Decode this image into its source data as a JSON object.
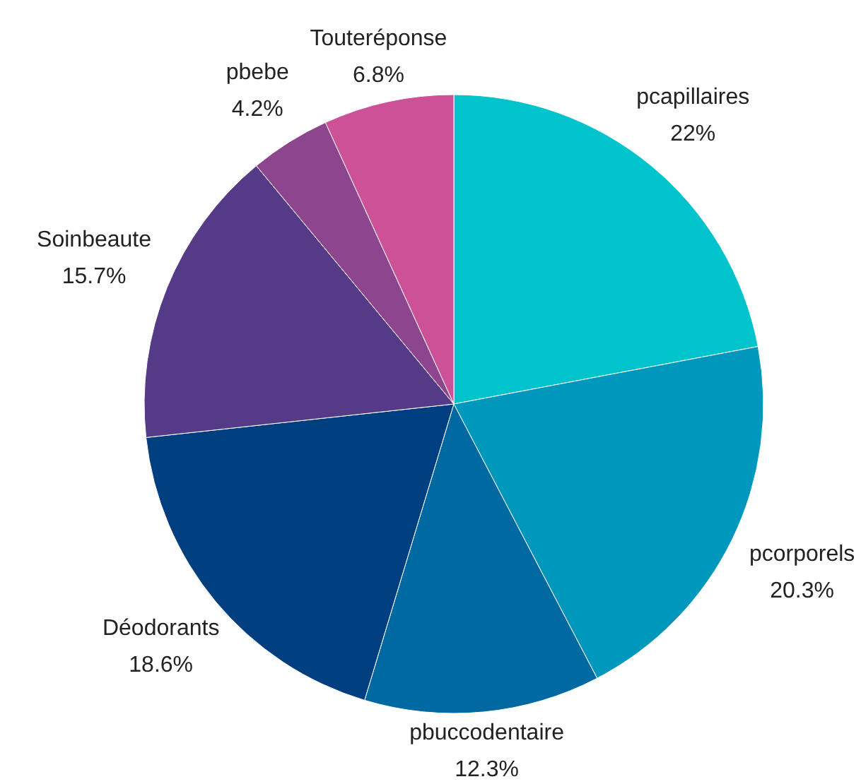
{
  "chart_data": {
    "type": "pie",
    "categories": [
      "pcapillaires",
      "pcorporels",
      "pbuccodentaire",
      "Déodorants",
      "Soinbeaute",
      "pbebe",
      "Touteréponse"
    ],
    "values": [
      22,
      20.3,
      12.3,
      18.6,
      15.7,
      4.2,
      6.8
    ],
    "value_labels": [
      "22%",
      "20.3%",
      "12.3%",
      "18.6%",
      "15.7%",
      "4.2%",
      "6.8%"
    ],
    "colors": [
      "#00c3cc",
      "#0097bd",
      "#0069a1",
      "#003f7f",
      "#543a87",
      "#8d458e",
      "#cc5196"
    ]
  }
}
